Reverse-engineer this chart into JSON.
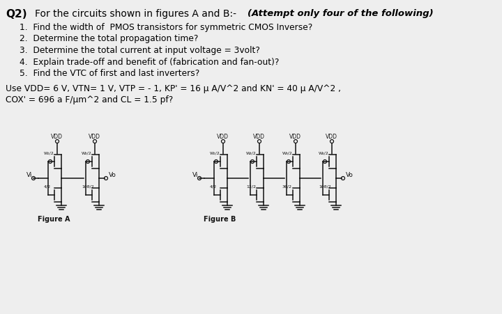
{
  "title_q": "Q2)",
  "title_text": " For the circuits shown in figures A and B:-",
  "attempt_text": "(Attempt only four of the following)",
  "questions": [
    "1.  Find the width of  PMOS transistors for symmetric CMOS Inverse?",
    "2.  Determine the total propagation time?",
    "3.  Determine the total current at input voltage = 3volt?",
    "4.  Explain trade-off and benefit of (fabrication and fan-out)?",
    "5.  Find the VTC of first and last inverters?"
  ],
  "params_line1": "Use VDD= 6 V, VTN= 1 V, VTP = - 1, KP' = 16 μ A/V^2 and KN' = 40 μ A/V^2 ,",
  "params_line2": "COX' = 696 a F/μm^2 and CL = 1.5 pf?",
  "fig_a_label": "Figure A",
  "fig_b_label": "Figure B",
  "bg_color": "#eeeeee",
  "text_color": "#000000",
  "circuit_color": "#111111",
  "fig_a_inv": [
    {
      "p_label": "W₁/2",
      "n_label": "4/2"
    },
    {
      "p_label": "W₂/2",
      "n_label": "108/2"
    }
  ],
  "fig_b_inv": [
    {
      "p_label": "W₁/2",
      "n_label": "4/2"
    },
    {
      "p_label": "W₂/2",
      "n_label": "12/2"
    },
    {
      "p_label": "W₃/2",
      "n_label": "36/2"
    },
    {
      "p_label": "W₄/2",
      "n_label": "108/2"
    }
  ]
}
